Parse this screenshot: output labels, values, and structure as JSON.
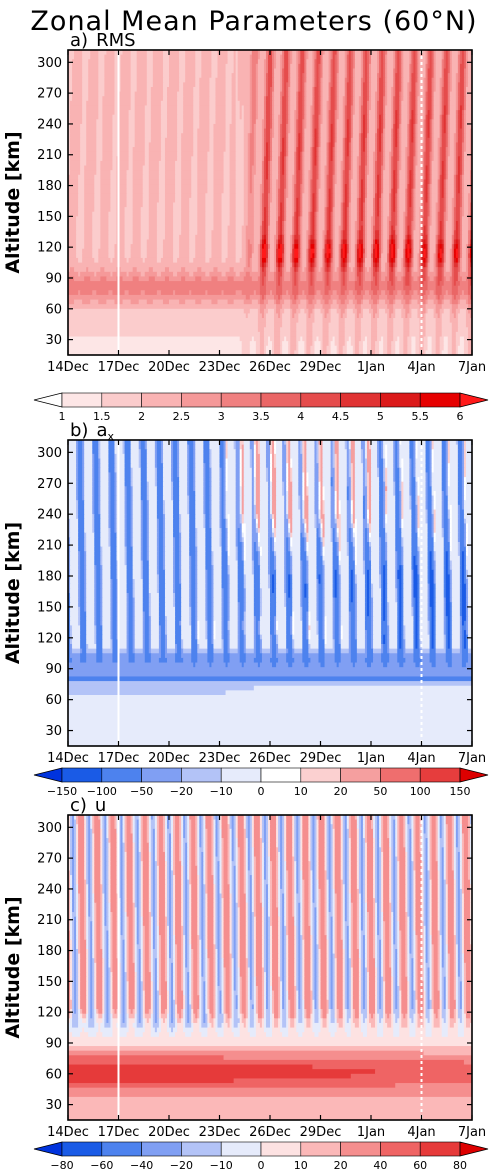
{
  "title": "Zonal Mean Parameters (60°N)",
  "x_ticks": [
    "14Dec",
    "17Dec",
    "20Dec",
    "23Dec",
    "26Dec",
    "29Dec",
    "1Jan",
    "4Jan",
    "7Jan"
  ],
  "y_ticks": [
    30,
    60,
    90,
    120,
    150,
    180,
    210,
    240,
    270,
    300
  ],
  "chart_data": [
    {
      "type": "heatmap",
      "panel_label": "a)",
      "variable": "RMS",
      "ylabel": "Altitude [km]",
      "ylim": [
        15,
        312
      ],
      "x_range": [
        "14Dec",
        "7Jan"
      ],
      "colorbar": {
        "levels": [
          "1",
          "1.5",
          "2",
          "2.5",
          "3",
          "3.5",
          "4",
          "4.5",
          "5",
          "5.5",
          "6"
        ],
        "colors": [
          "#ffffff",
          "#fde6e6",
          "#fbcccc",
          "#f9b3b3",
          "#f59999",
          "#f08080",
          "#ea6666",
          "#e54c4c",
          "#e03333",
          "#db1a1a",
          "#e60000",
          "#ff1a1a"
        ],
        "extend": "both",
        "lower_extension": "white open arrow"
      },
      "markers": {
        "vertical_line_dates": [
          "17Dec",
          "4Jan"
        ]
      },
      "description_values": {
        "peak_altitude_km": 115,
        "peak_value": 5.5,
        "onset": "24Dec"
      }
    },
    {
      "type": "heatmap",
      "panel_label": "b)",
      "variable": "a",
      "variable_subscript": "x",
      "ylabel": "Altitude [km]",
      "ylim": [
        15,
        312
      ],
      "x_range": [
        "14Dec",
        "7Jan"
      ],
      "colorbar": {
        "levels": [
          "−150",
          "−100",
          "−50",
          "−20",
          "−10",
          "0",
          "10",
          "20",
          "50",
          "100",
          "150"
        ],
        "colors": [
          "#0033dd",
          "#1a5be6",
          "#4d82ee",
          "#809ff3",
          "#b3c3f7",
          "#e6ebfb",
          "#ffffff",
          "#fbd0d0",
          "#f59f9f",
          "#ef6e6e",
          "#e63d3d",
          "#dd0000"
        ],
        "extend": "both"
      },
      "markers": {
        "vertical_line_dates": [
          "17Dec",
          "4Jan"
        ]
      }
    },
    {
      "type": "heatmap",
      "panel_label": "c)",
      "variable": "u",
      "ylabel": "Altitude [km]",
      "ylim": [
        15,
        312
      ],
      "x_range": [
        "14Dec",
        "7Jan"
      ],
      "colorbar": {
        "levels": [
          "−80",
          "−60",
          "−40",
          "−20",
          "−10",
          "0",
          "10",
          "20",
          "40",
          "60",
          "80"
        ],
        "colors": [
          "#0033dd",
          "#1a5be6",
          "#4d82ee",
          "#809ff3",
          "#b3c3f7",
          "#e6ebfb",
          "#fde2e2",
          "#fbb8b8",
          "#f58e8e",
          "#ef6464",
          "#e63a3a",
          "#dd0000"
        ],
        "extend": "both"
      },
      "markers": {
        "vertical_line_dates": [
          "17Dec",
          "4Jan"
        ]
      }
    }
  ]
}
